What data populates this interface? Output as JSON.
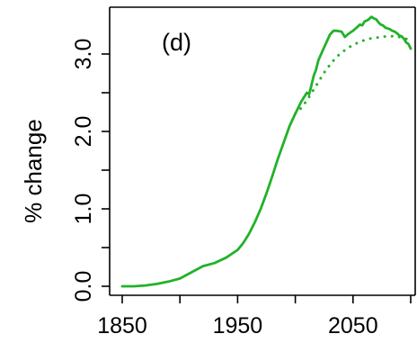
{
  "chart_data": {
    "type": "line",
    "panel_label": "(d)",
    "xlabel": "",
    "ylabel": "%  change",
    "xlim": [
      1850,
      2100
    ],
    "ylim": [
      0.0,
      3.5
    ],
    "xticks": [
      1850,
      1950,
      2050
    ],
    "xtick_labels": [
      "1850",
      "1950",
      "2050"
    ],
    "x_minor_ticks": [
      1900,
      2000,
      2100
    ],
    "yticks": [
      0.0,
      1.0,
      2.0,
      3.0
    ],
    "ytick_labels": [
      "0.0",
      "1.0",
      "2.0",
      "3.0"
    ],
    "y_minor_ticks": [
      0.5,
      1.5,
      2.5
    ],
    "grid": false,
    "series": [
      {
        "style": "solid",
        "color": "#22b22a",
        "x": [
          1850,
          1860,
          1870,
          1880,
          1890,
          1900,
          1910,
          1920,
          1930,
          1940,
          1950,
          1955,
          1960,
          1965,
          1970,
          1975,
          1980,
          1985,
          1990,
          1995,
          2000,
          2005,
          2010,
          2012,
          2014,
          2016,
          2018,
          2020,
          2023,
          2026,
          2030,
          2033,
          2036,
          2040,
          2043,
          2046,
          2048,
          2050,
          2053,
          2056,
          2058,
          2060,
          2063,
          2066,
          2068,
          2070,
          2072,
          2074,
          2076,
          2078,
          2080,
          2082,
          2084,
          2086,
          2088,
          2090,
          2092,
          2094,
          2096,
          2098,
          2100
        ],
        "y": [
          0.0,
          0.0,
          0.01,
          0.03,
          0.06,
          0.1,
          0.18,
          0.26,
          0.3,
          0.37,
          0.47,
          0.56,
          0.68,
          0.83,
          1.0,
          1.2,
          1.42,
          1.65,
          1.86,
          2.07,
          2.23,
          2.38,
          2.5,
          2.48,
          2.6,
          2.72,
          2.8,
          2.92,
          3.02,
          3.12,
          3.25,
          3.3,
          3.3,
          3.29,
          3.22,
          3.26,
          3.28,
          3.3,
          3.34,
          3.38,
          3.37,
          3.42,
          3.44,
          3.48,
          3.46,
          3.45,
          3.41,
          3.38,
          3.37,
          3.34,
          3.33,
          3.32,
          3.3,
          3.29,
          3.27,
          3.24,
          3.23,
          3.2,
          3.15,
          3.13,
          3.07
        ]
      },
      {
        "style": "dotted",
        "color": "#22b22a",
        "x": [
          2000,
          2005,
          2010,
          2015,
          2020,
          2025,
          2030,
          2035,
          2040,
          2045,
          2050,
          2055,
          2060,
          2065,
          2070,
          2075,
          2080,
          2085,
          2090,
          2095,
          2100
        ],
        "y": [
          2.23,
          2.3,
          2.4,
          2.52,
          2.64,
          2.76,
          2.86,
          2.95,
          3.02,
          3.07,
          3.12,
          3.15,
          3.18,
          3.2,
          3.21,
          3.22,
          3.23,
          3.23,
          3.22,
          3.2,
          3.18
        ]
      }
    ]
  }
}
